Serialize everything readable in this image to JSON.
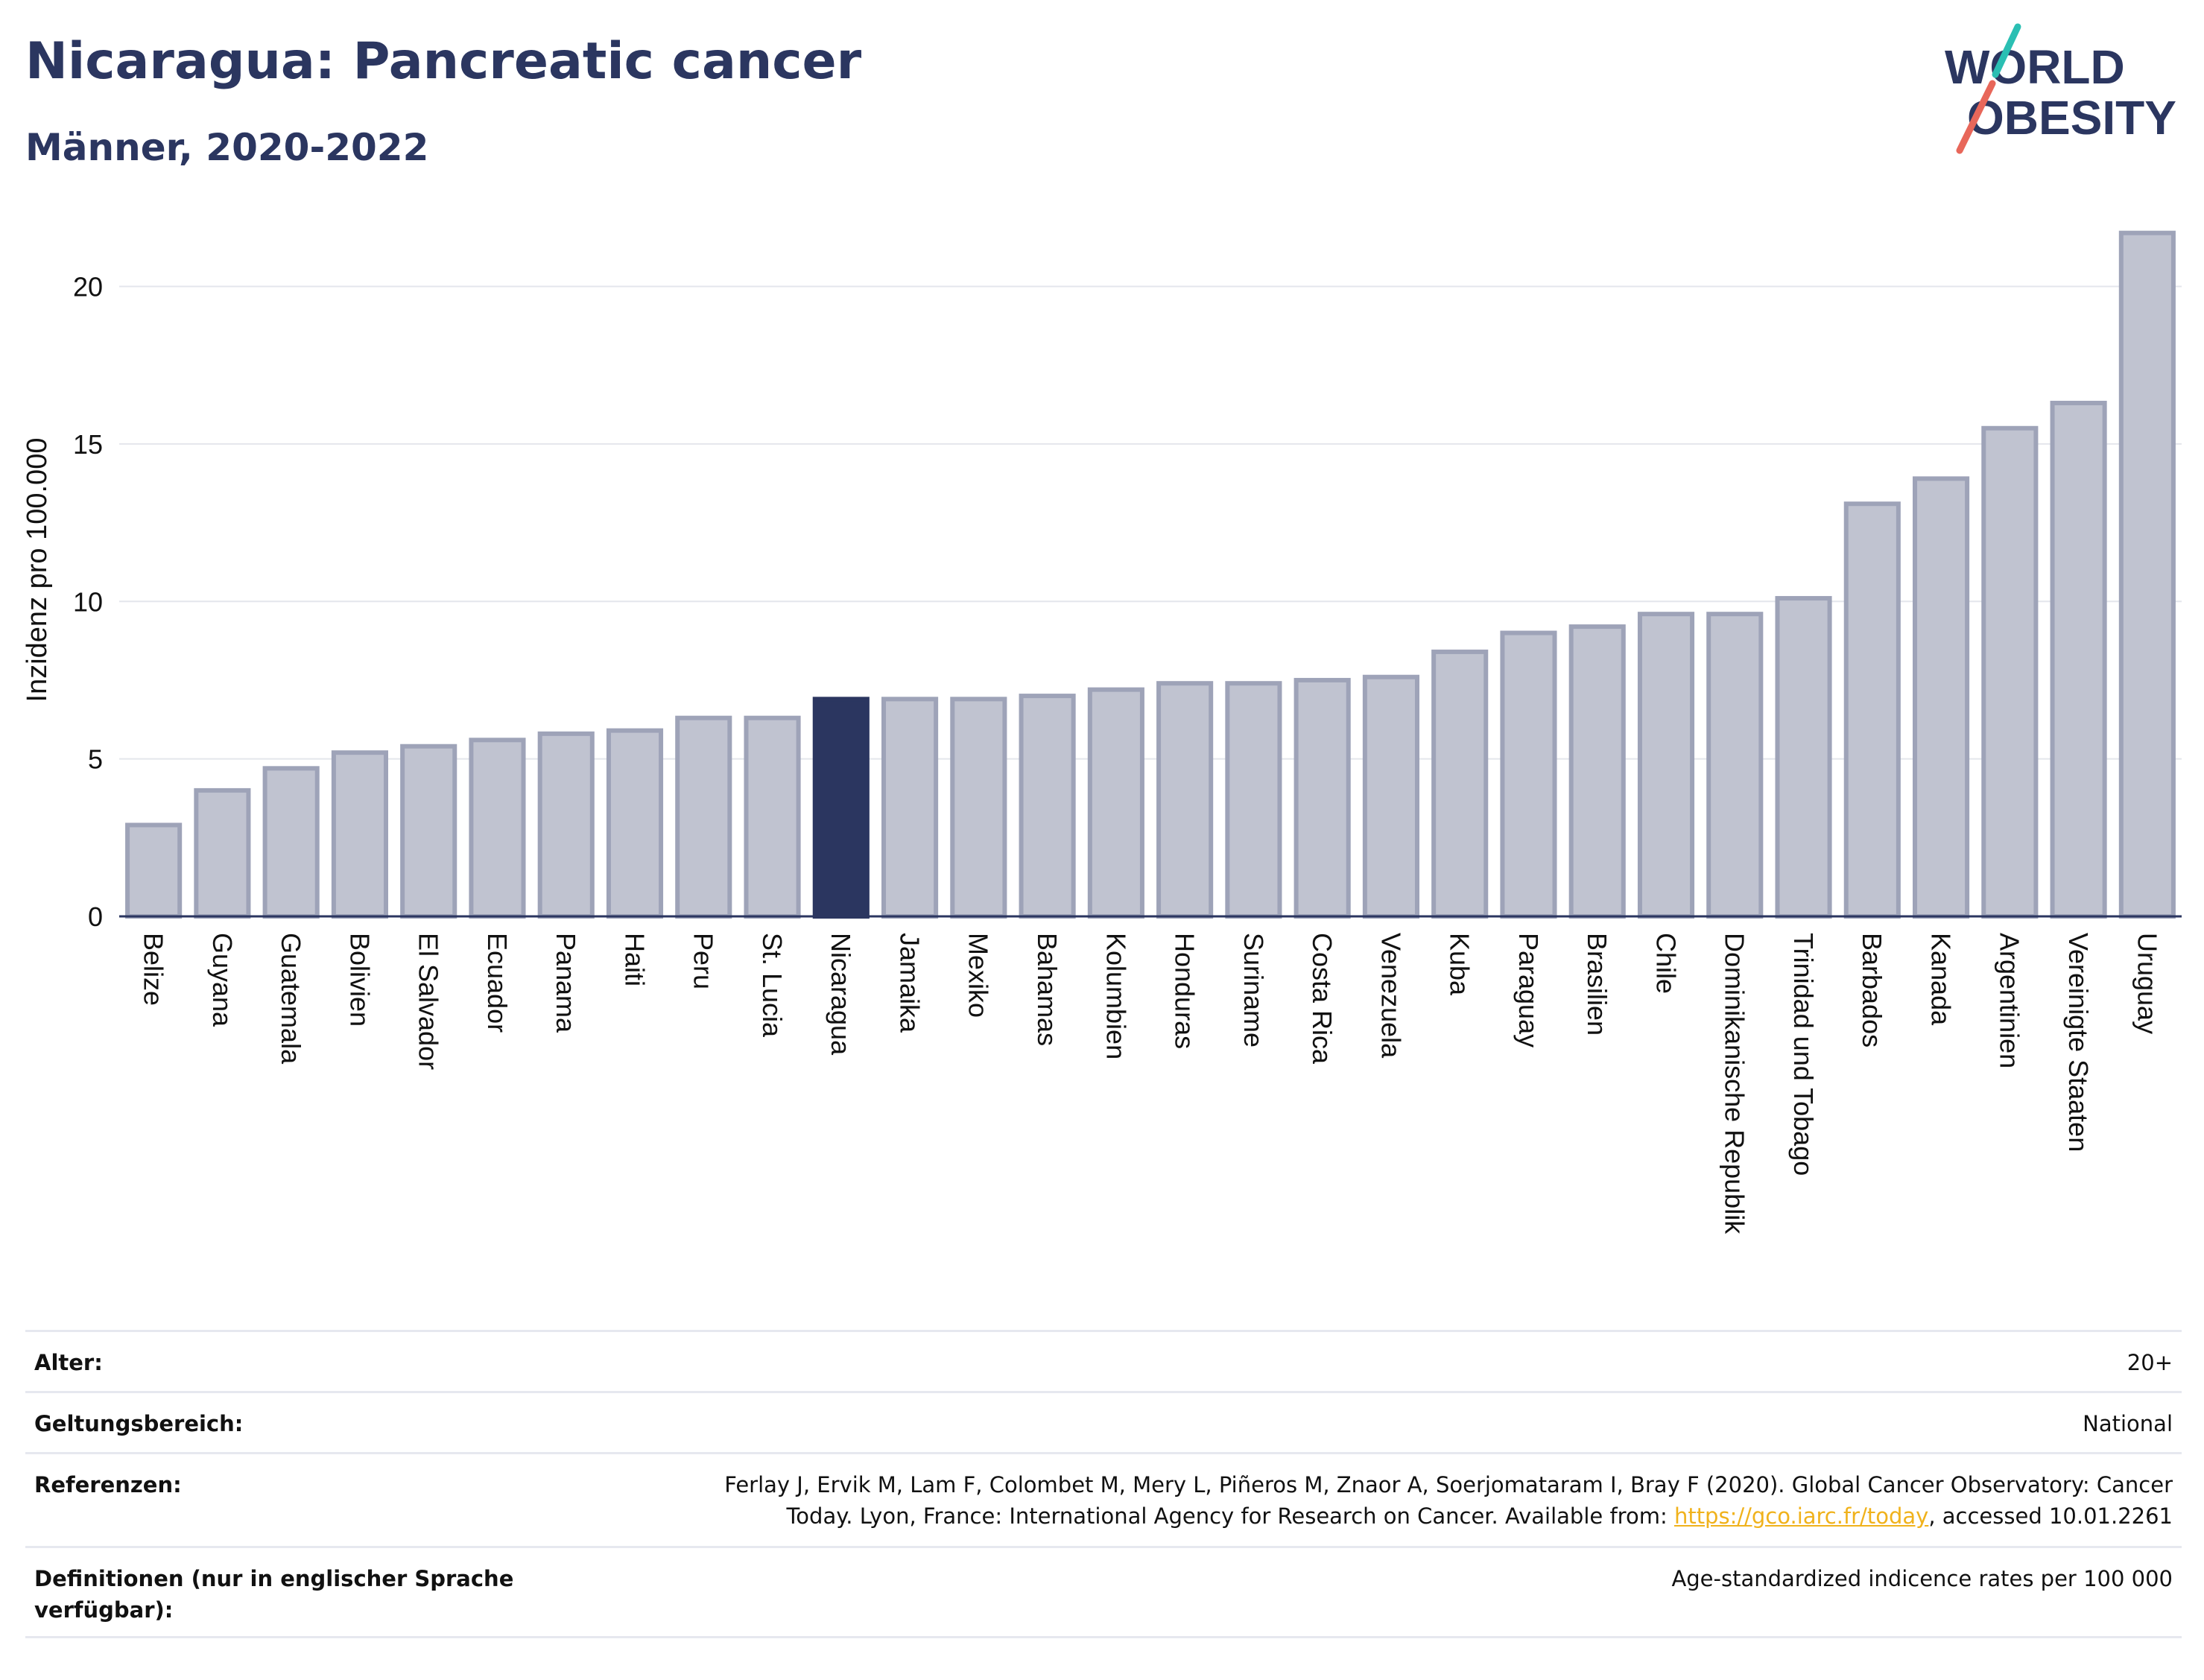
{
  "header": {
    "title": "Nicaragua: Pancreatic cancer",
    "subtitle": "Männer, 2020-2022"
  },
  "logo": {
    "line1": "WORLD",
    "line2": "OBESITY",
    "accent_colors": [
      "#2bbfb3",
      "#e8675a"
    ]
  },
  "chart_data": {
    "type": "bar",
    "title": "Nicaragua: Pancreatic cancer",
    "subtitle": "Männer, 2020-2022",
    "ylabel": "Inzidenz pro 100.000",
    "xlabel": "",
    "ylim": [
      0,
      22
    ],
    "yticks": [
      0,
      5,
      10,
      15,
      20
    ],
    "grid": true,
    "highlight": "Nicaragua",
    "colors": {
      "bar": "#c0c3d0",
      "bar_border": "#9ea3b8",
      "highlight": "#2b3660"
    },
    "categories": [
      "Belize",
      "Guyana",
      "Guatemala",
      "Bolivien",
      "El Salvador",
      "Ecuador",
      "Panama",
      "Haiti",
      "Peru",
      "St. Lucia",
      "Nicaragua",
      "Jamaika",
      "Mexiko",
      "Bahamas",
      "Kolumbien",
      "Honduras",
      "Suriname",
      "Costa Rica",
      "Venezuela",
      "Kuba",
      "Paraguay",
      "Brasilien",
      "Chile",
      "Dominikanische Republik",
      "Trinidad und Tobago",
      "Barbados",
      "Kanada",
      "Argentinien",
      "Vereinigte Staaten",
      "Uruguay"
    ],
    "values": [
      2.9,
      4.0,
      4.7,
      5.2,
      5.4,
      5.6,
      5.8,
      5.9,
      6.3,
      6.3,
      6.9,
      6.9,
      6.9,
      7.0,
      7.2,
      7.4,
      7.4,
      7.5,
      7.6,
      8.4,
      9.0,
      9.2,
      9.6,
      9.6,
      10.1,
      13.1,
      13.9,
      15.5,
      16.3,
      21.7
    ]
  },
  "info": {
    "rows": [
      {
        "label": "Alter:",
        "value": "20+"
      },
      {
        "label": "Geltungsbereich:",
        "value": "National"
      },
      {
        "label": "Referenzen:",
        "value_line1": "Ferlay J, Ervik M, Lam F, Colombet M, Mery L, Piñeros M, Znaor A, Soerjomataram I, Bray F (2020). Global Cancer Observatory: Cancer",
        "value_line2_pre": "Today. Lyon, France: International Agency for Research on Cancer. Available from: ",
        "link": "https://gco.iarc.fr/today",
        "value_line2_post": ", accessed 10.01.2261"
      },
      {
        "label": "Definitionen (nur in englischer Sprache verfügbar):",
        "value": "Age-standardized indicence rates per 100 000"
      }
    ]
  }
}
